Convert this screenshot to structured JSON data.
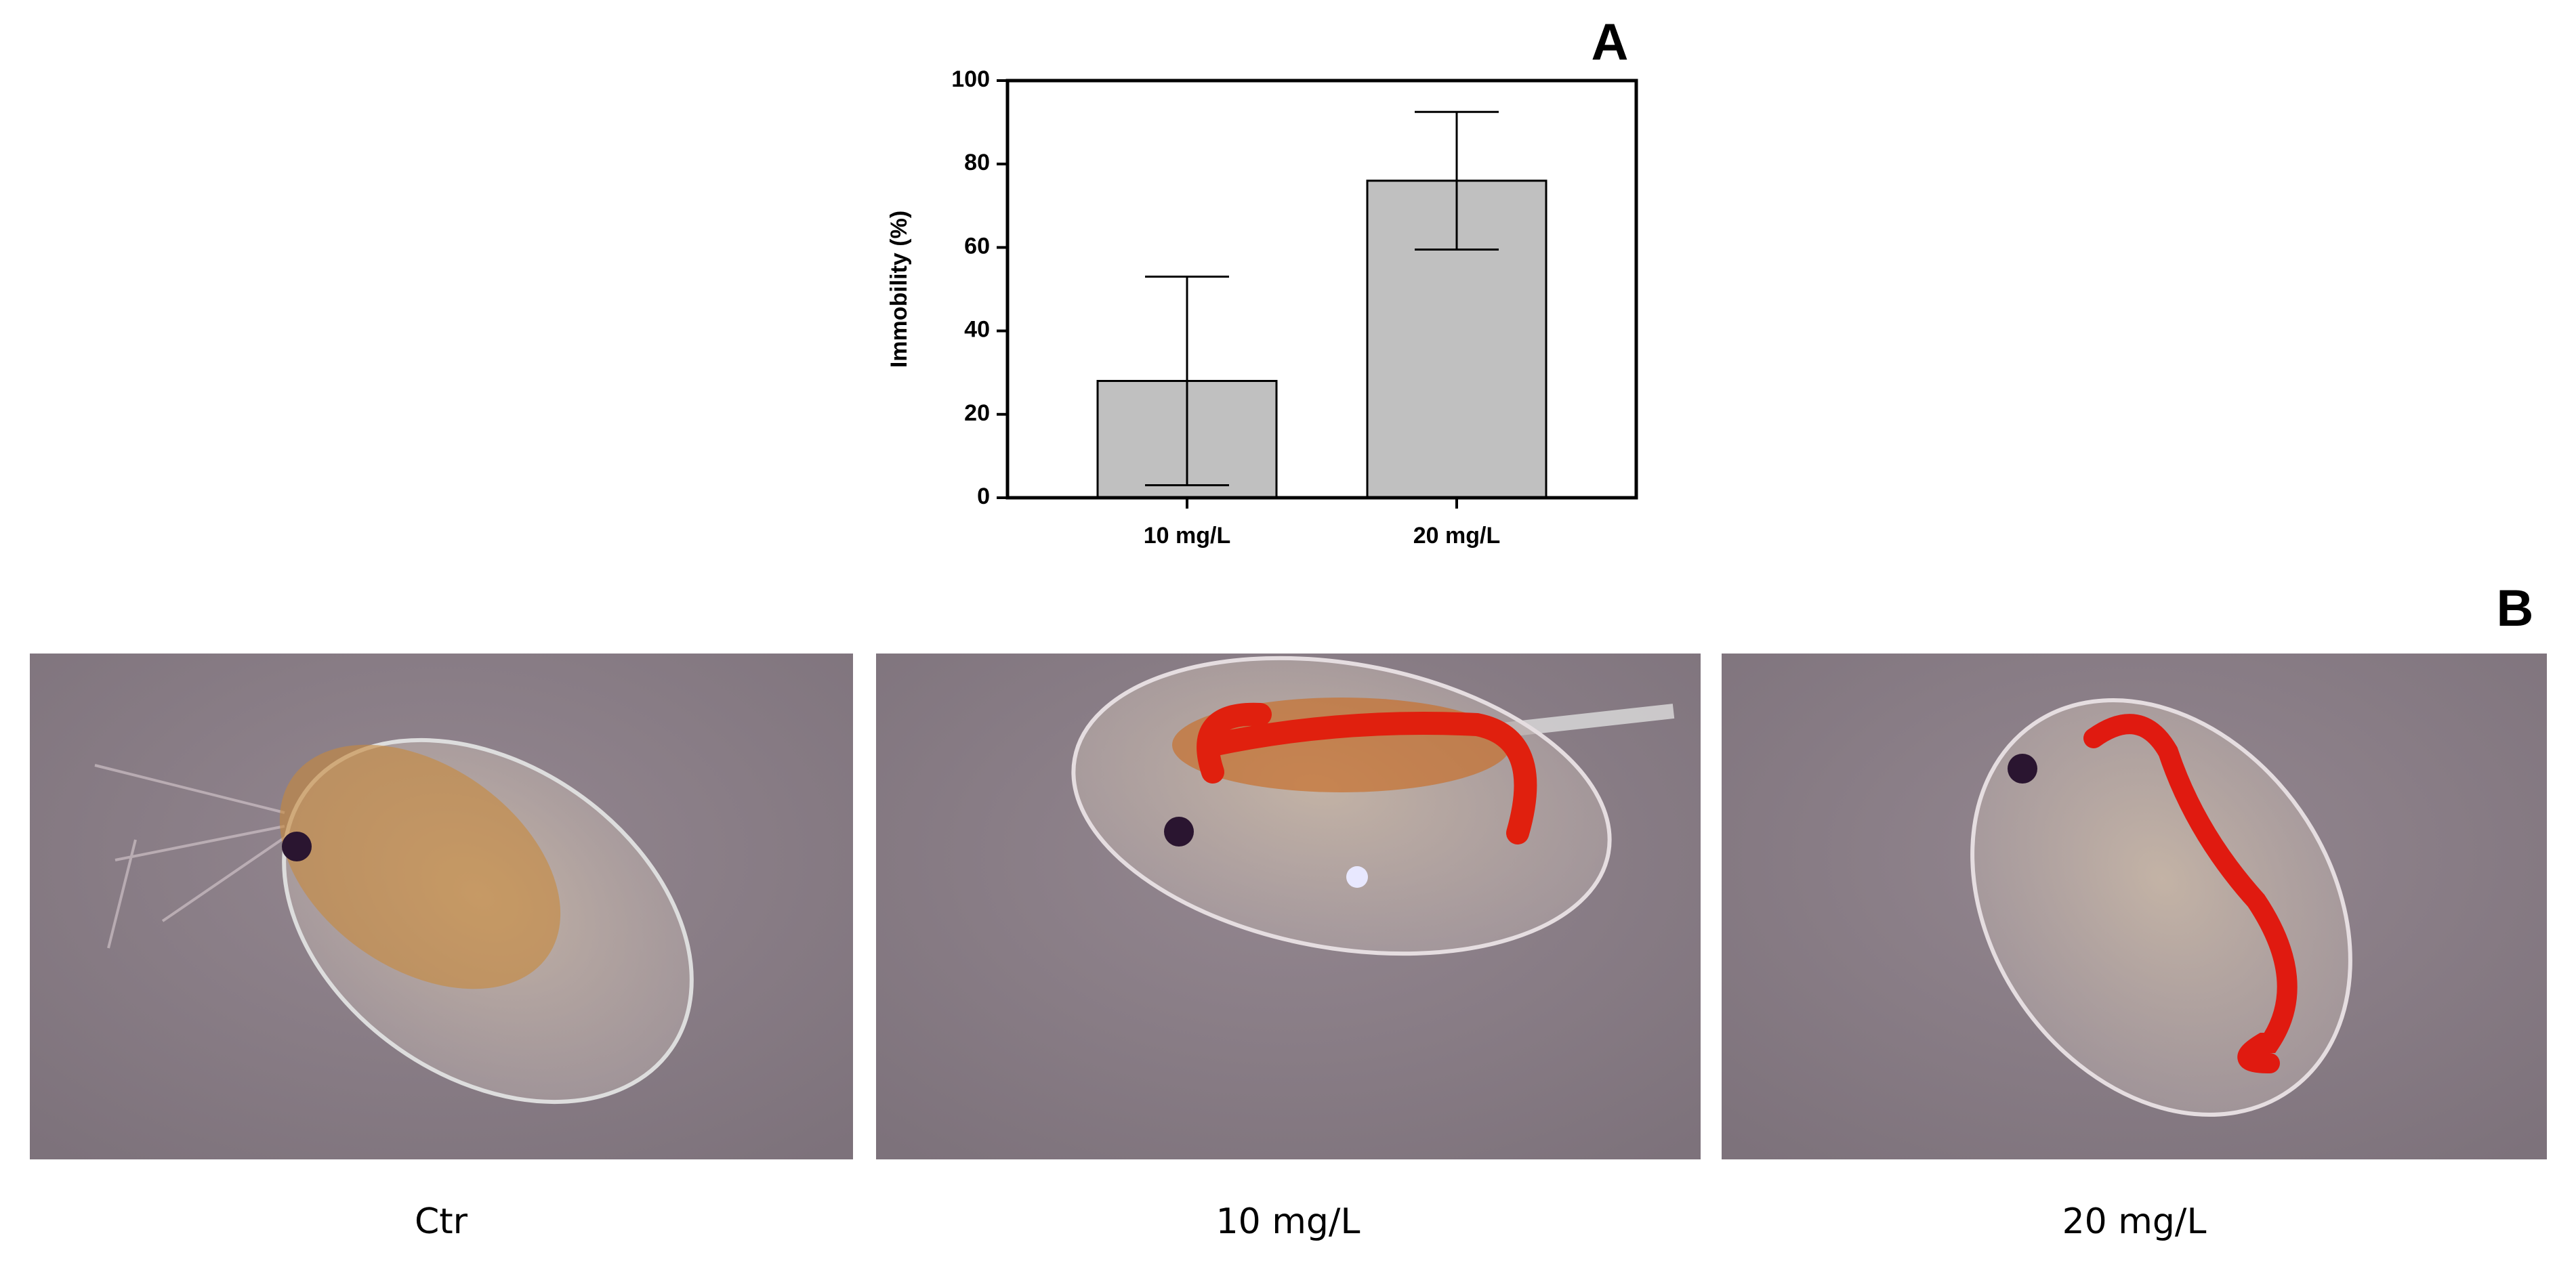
{
  "chart_data": {
    "type": "bar",
    "y_label": "Immobility (%)",
    "categories": [
      "10 mg/L",
      "20 mg/L"
    ],
    "values": [
      28,
      76
    ],
    "errors": [
      25,
      16.5
    ],
    "color": "#c0c0c0",
    "ylim": [
      0,
      100
    ],
    "yticks": [
      0,
      20,
      40,
      60,
      80,
      100
    ]
  },
  "panel_labels": [
    "A",
    "B"
  ],
  "images": [
    {
      "caption": "Ctr"
    },
    {
      "caption": "10 mg/L"
    },
    {
      "caption": "20 mg/L"
    }
  ]
}
